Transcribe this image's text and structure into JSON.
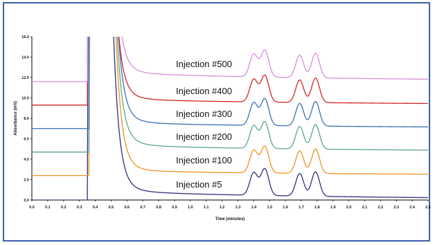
{
  "chart_data": {
    "type": "line",
    "xlabel": "Time (minutes)",
    "ylabel": "Absorbance (mV)",
    "xlim": [
      0.0,
      2.5
    ],
    "ylim": [
      0.0,
      16.0
    ],
    "x_ticks": [
      "0.0",
      "0.1",
      "0.2",
      "0.3",
      "0.4",
      "0.5",
      "0.6",
      "0.7",
      "0.8",
      "0.9",
      "1.0",
      "1.1",
      "1.2",
      "1.3",
      "1.4",
      "1.5",
      "1.6",
      "1.7",
      "1.8",
      "1.9",
      "2.0",
      "2.1",
      "2.2",
      "2.3",
      "2.4",
      "2.5"
    ],
    "y_ticks": [
      "0.0",
      "2.0",
      "4.0",
      "6.0",
      "8.0",
      "10.0",
      "12.0",
      "14.0",
      "16.0"
    ],
    "grid": false,
    "legend": "none",
    "series": [
      {
        "name": "Injection #5",
        "color": "#2e2e7a",
        "baseline": 0.0,
        "solvent_time": 0.35,
        "tail": 1.4,
        "drift": 0.9
      },
      {
        "name": "Injection #100",
        "color": "#f0901e",
        "baseline": 2.4,
        "solvent_time": 0.36,
        "tail": 1.2,
        "drift": 0.5
      },
      {
        "name": "Injection #200",
        "color": "#5aa58a",
        "baseline": 4.7,
        "solvent_time": 0.36,
        "tail": 1.4,
        "drift": 0.7
      },
      {
        "name": "Injection #300",
        "color": "#3b6db5",
        "baseline": 7.0,
        "solvent_time": 0.36,
        "tail": 1.3,
        "drift": 0.6
      },
      {
        "name": "Injection #400",
        "color": "#d42424",
        "baseline": 9.3,
        "solvent_time": 0.35,
        "tail": 1.3,
        "drift": 0.6
      },
      {
        "name": "Injection #500",
        "color": "#d58ed6",
        "baseline": 11.6,
        "solvent_time": 0.35,
        "tail": 1.2,
        "drift": 0.9
      }
    ],
    "peaks": [
      {
        "time": 1.4,
        "height": 2.2
      },
      {
        "time": 1.47,
        "height": 2.6
      },
      {
        "time": 1.69,
        "height": 2.2
      },
      {
        "time": 1.79,
        "height": 2.4
      }
    ],
    "annotations": [
      "Injection #500",
      "Injection #400",
      "Injection #300",
      "Injection #200",
      "Injection #100",
      "Injection #5"
    ]
  }
}
